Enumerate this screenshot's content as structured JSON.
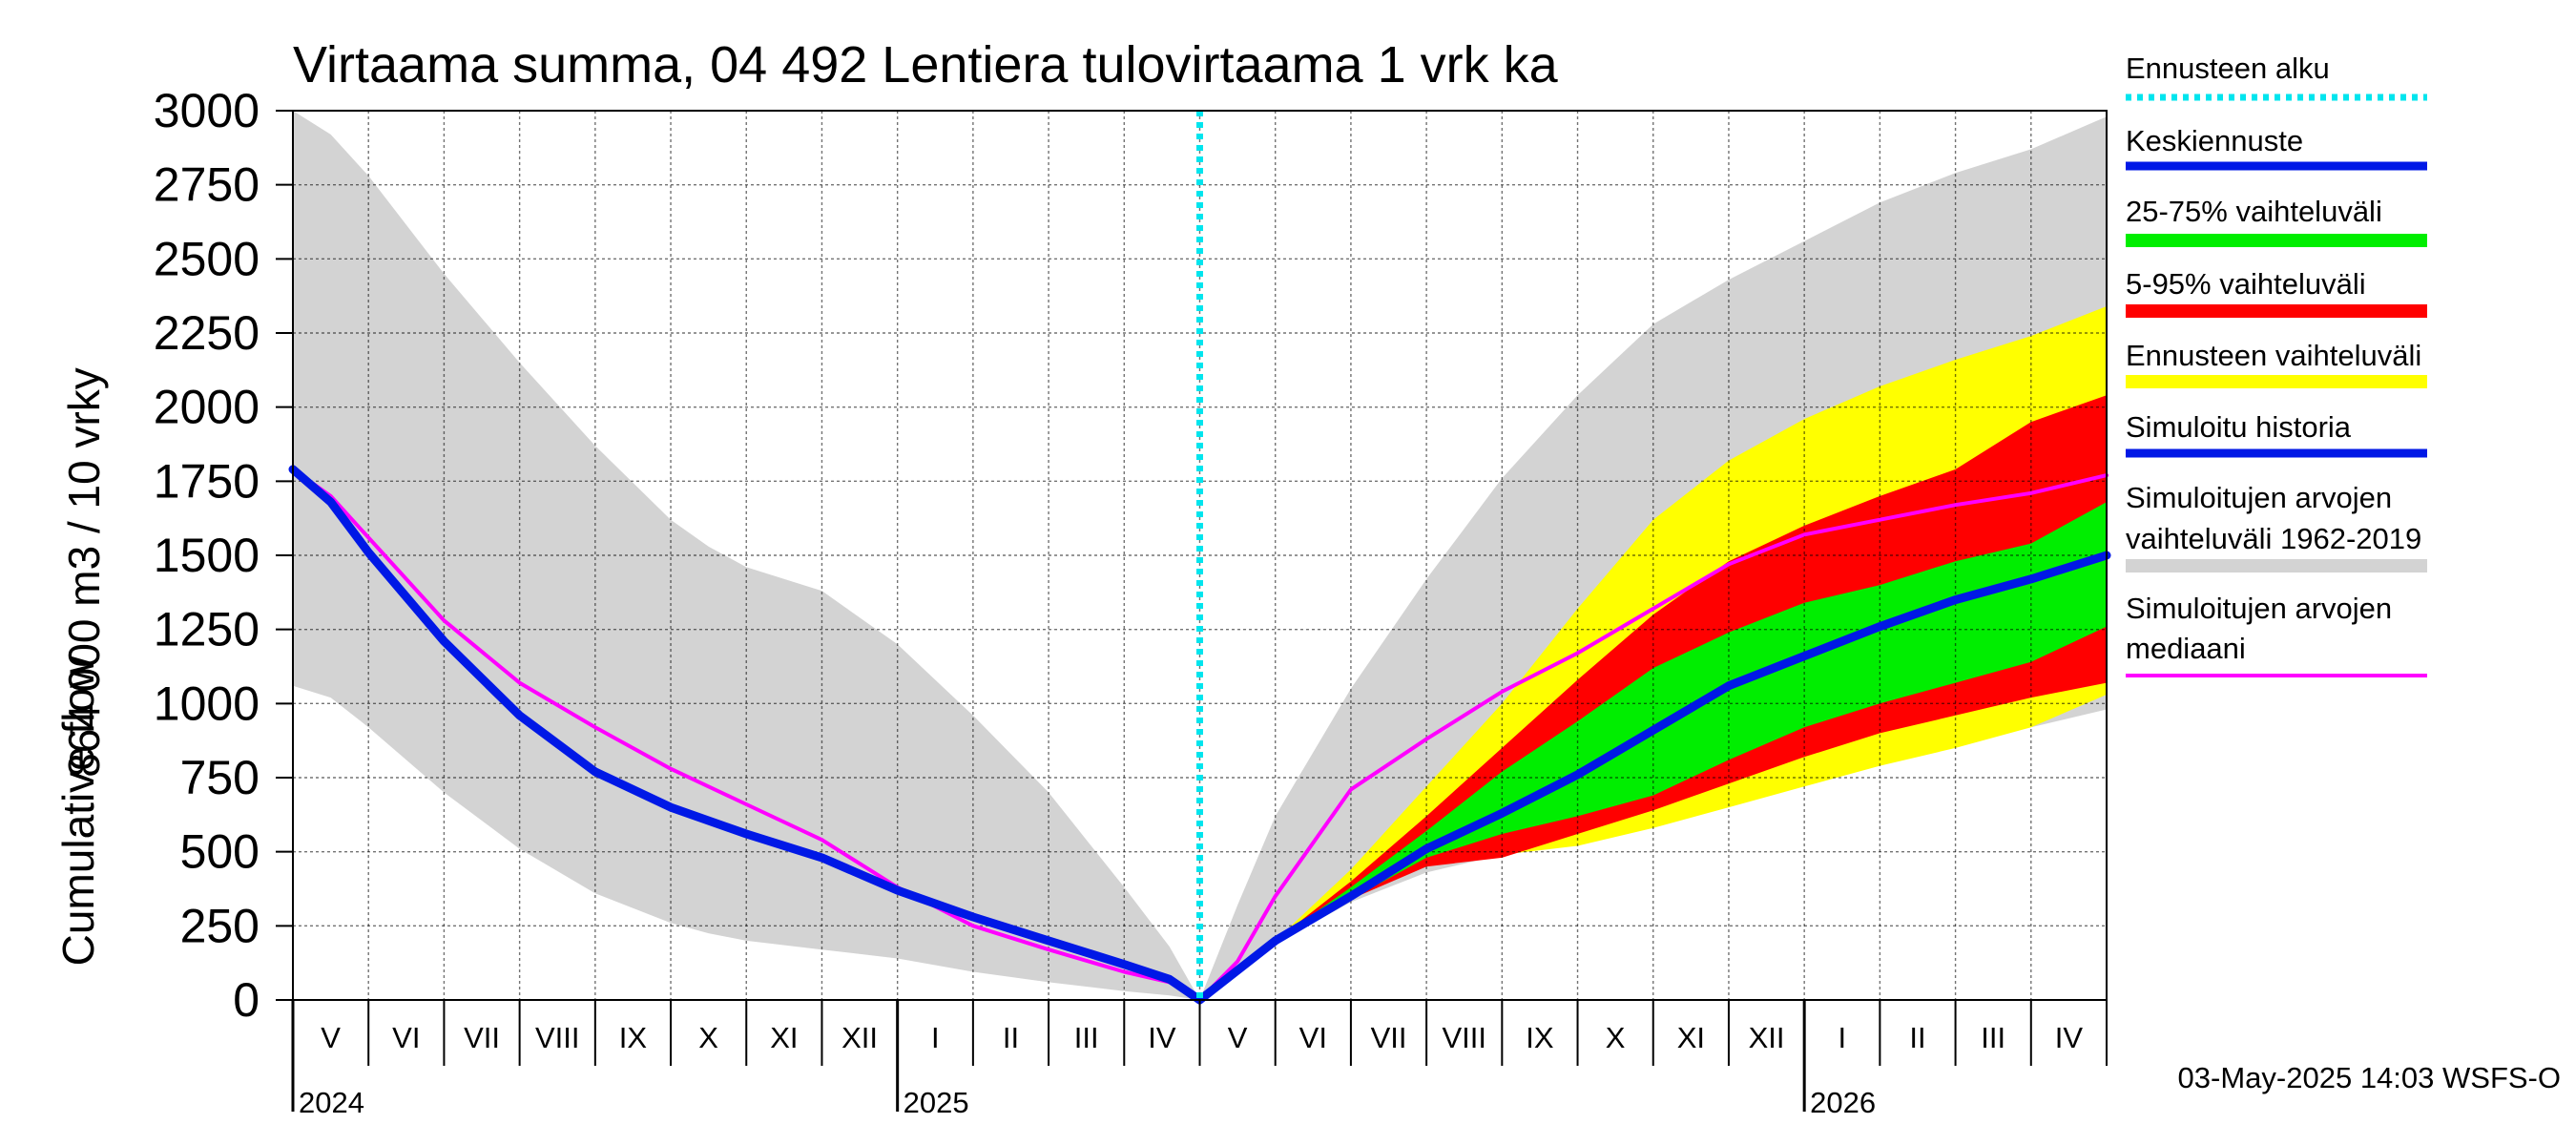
{
  "chart_data": {
    "type": "area",
    "title": "Virtaama summa, 04 492 Lentiera tulovirtaama 1 vrk ka",
    "ylabel_line1": "864 000 m3 / 10 vrky",
    "ylabel_line2": "Cumulative flow",
    "ylim": [
      0,
      3000
    ],
    "yticks": [
      "0",
      "250",
      "500",
      "750",
      "1000",
      "1250",
      "1500",
      "1750",
      "2000",
      "2250",
      "2500",
      "2750",
      "3000"
    ],
    "x_range_months": [
      0,
      24
    ],
    "months": [
      "V",
      "VI",
      "VII",
      "VIII",
      "IX",
      "X",
      "XI",
      "XII",
      "I",
      "II",
      "III",
      "IV",
      "V",
      "VI",
      "VII",
      "VIII",
      "IX",
      "X",
      "XI",
      "XII",
      "I",
      "II",
      "III",
      "IV"
    ],
    "years": [
      {
        "label": "2024",
        "at": 0
      },
      {
        "label": "2025",
        "at": 8
      },
      {
        "label": "2026",
        "at": 20
      }
    ],
    "forecast_start": 12,
    "grid": true,
    "footer": "03-May-2025 14:03 WSFS-O",
    "legend": [
      {
        "label": "Ennusteen alku",
        "color": "#00e5ee",
        "style": "dotted"
      },
      {
        "label": "Keskiennuste",
        "color": "#0018e6",
        "style": "line"
      },
      {
        "label": "25-75% vaihteluväli",
        "color": "#00ee00",
        "style": "band"
      },
      {
        "label": "5-95% vaihteluväli",
        "color": "#ff0000",
        "style": "band"
      },
      {
        "label": "Ennusteen vaihteluväli",
        "color": "#ffff00",
        "style": "band"
      },
      {
        "label": "Simuloitu historia",
        "color": "#0018e6",
        "style": "line"
      },
      {
        "label": "Simuloitujen arvojen",
        "label2": "vaihteluväli 1962-2019",
        "color": "#d3d3d3",
        "style": "band"
      },
      {
        "label": "Simuloitujen arvojen",
        "label2": "mediaani",
        "color": "#ff00ff",
        "style": "line"
      }
    ],
    "series": {
      "hist_range": {
        "x": [
          0,
          0.5,
          1,
          2,
          3,
          4,
          5,
          5.5,
          6,
          7,
          8,
          9,
          10,
          11,
          11.6,
          12,
          12.5,
          13,
          14,
          15,
          16,
          17,
          18,
          19,
          20,
          21,
          22,
          23,
          24
        ],
        "upper": [
          3000,
          2920,
          2780,
          2450,
          2150,
          1870,
          1620,
          1530,
          1460,
          1380,
          1200,
          960,
          700,
          380,
          180,
          0,
          320,
          620,
          1050,
          1420,
          1760,
          2040,
          2280,
          2430,
          2560,
          2690,
          2790,
          2870,
          2980
        ],
        "lower": [
          1060,
          1020,
          920,
          700,
          510,
          360,
          260,
          225,
          200,
          170,
          140,
          95,
          60,
          30,
          15,
          0,
          90,
          190,
          330,
          430,
          490,
          540,
          600,
          660,
          760,
          820,
          870,
          920,
          980
        ]
      },
      "forecast_range": {
        "x": [
          12,
          13,
          14,
          15,
          16,
          17,
          18,
          19,
          20,
          21,
          22,
          23,
          24
        ],
        "upper": [
          0,
          200,
          440,
          720,
          1000,
          1320,
          1620,
          1820,
          1960,
          2070,
          2160,
          2240,
          2340
        ],
        "lower": [
          0,
          190,
          360,
          450,
          490,
          520,
          580,
          650,
          720,
          790,
          850,
          920,
          1030
        ]
      },
      "p5_95": {
        "x": [
          12,
          13,
          14,
          15,
          16,
          17,
          18,
          19,
          20,
          21,
          22,
          23,
          24
        ],
        "upper": [
          0,
          200,
          400,
          620,
          850,
          1080,
          1300,
          1480,
          1600,
          1700,
          1790,
          1950,
          2040
        ],
        "lower": [
          0,
          190,
          340,
          450,
          480,
          560,
          640,
          730,
          820,
          900,
          960,
          1020,
          1070
        ]
      },
      "p25_75": {
        "x": [
          12,
          13,
          14,
          15,
          16,
          17,
          18,
          19,
          20,
          21,
          22,
          23,
          24
        ],
        "upper": [
          0,
          200,
          380,
          570,
          770,
          940,
          1120,
          1240,
          1340,
          1400,
          1480,
          1540,
          1680
        ],
        "lower": [
          0,
          190,
          340,
          480,
          560,
          620,
          690,
          810,
          920,
          1000,
          1070,
          1140,
          1260
        ]
      },
      "median": {
        "x": [
          0,
          0.5,
          1,
          2,
          3,
          4,
          5,
          6,
          7,
          8,
          9,
          10,
          11,
          11.6,
          12,
          12.5,
          13,
          14,
          15,
          16,
          17,
          18,
          19,
          20,
          21,
          22,
          23,
          24
        ],
        "y": [
          1790,
          1700,
          1560,
          1280,
          1070,
          920,
          780,
          660,
          540,
          380,
          250,
          170,
          95,
          60,
          0,
          130,
          350,
          710,
          880,
          1040,
          1170,
          1320,
          1470,
          1570,
          1620,
          1670,
          1710,
          1770
        ]
      },
      "simulated_history": {
        "x": [
          0,
          0.5,
          1,
          2,
          3,
          4,
          5,
          6,
          7,
          8,
          9,
          10,
          11,
          11.6,
          12
        ],
        "y": [
          1790,
          1680,
          1510,
          1210,
          960,
          770,
          650,
          560,
          480,
          370,
          280,
          200,
          120,
          70,
          0
        ]
      },
      "mean_forecast": {
        "x": [
          12,
          13,
          14,
          15,
          16,
          17,
          18,
          19,
          20,
          21,
          22,
          23,
          24
        ],
        "y": [
          0,
          200,
          350,
          510,
          630,
          760,
          910,
          1060,
          1160,
          1260,
          1350,
          1420,
          1500
        ]
      }
    }
  }
}
